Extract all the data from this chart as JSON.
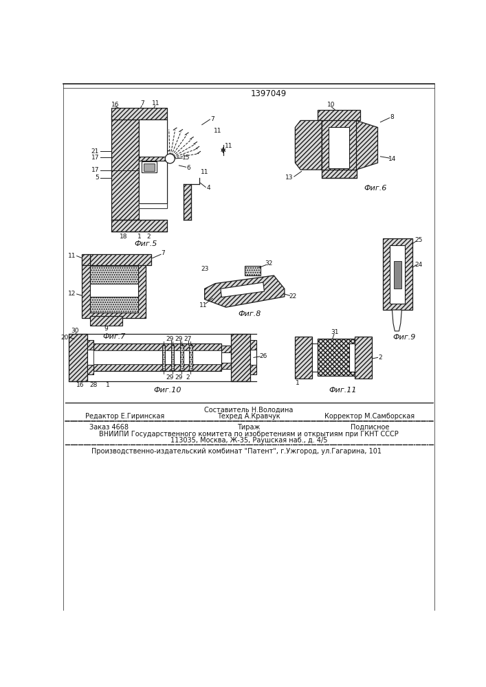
{
  "patent_number": "1397049",
  "fig5_caption": "Фиг.5",
  "fig6_caption": "Фиг.6",
  "fig7_caption": "Фиг.7",
  "fig8_caption": "Фиг.8",
  "fig9_caption": "Фиг.9",
  "fig10_caption": "Фиг.10",
  "fig11_caption": "Фиг.11",
  "footer_line1": "Составитель Н.Володина",
  "footer_line2_left": "Редактор Е.Гиринская",
  "footer_line2_mid": "Техред А.Кравчук",
  "footer_line2_right": "Корректор М.Самборская",
  "footer_line3_left": "Заказ 4668",
  "footer_line3_mid": "Тираж",
  "footer_line3_right": "Подписное",
  "footer_line4": "ВНИИПИ Государственного комитета по изобретениям и открытиям при ГКНТ СССР",
  "footer_line5": "113035, Москва, Ж-35, Раушская наб., д. 4/5",
  "footer_line6": "Производственно-издательский комбинат \"Патент\", г.Ужгород, ул.Гагарина, 101"
}
